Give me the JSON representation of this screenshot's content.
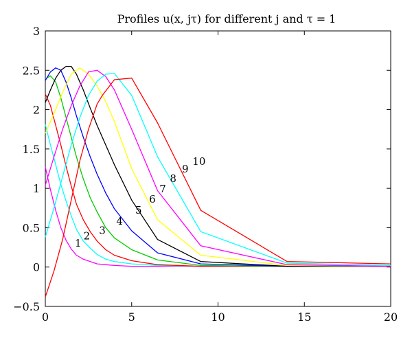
{
  "chart_data": {
    "type": "line",
    "title": "Profiles u(x, jτ) for different j and τ = 1",
    "xlim": [
      0,
      20
    ],
    "ylim": [
      -0.5,
      3
    ],
    "xticks": [
      "0",
      "5",
      "10",
      "15",
      "20"
    ],
    "yticks": [
      "−0.5",
      "0",
      "0.5",
      "1",
      "1.5",
      "2",
      "2.5",
      "3"
    ],
    "grid": false,
    "series": [
      {
        "label": "1",
        "color": "#ff00ff",
        "x": [
          0,
          0.3,
          0.6,
          0.9,
          1.2,
          1.5,
          1.8,
          2.2,
          2.6,
          3,
          3.5,
          4,
          5,
          6.5,
          9,
          14,
          20
        ],
        "y": [
          1.27,
          0.98,
          0.72,
          0.5,
          0.34,
          0.23,
          0.15,
          0.1,
          0.07,
          0.04,
          0.03,
          0.02,
          0.01,
          0.01,
          0.01,
          0.01,
          0.01
        ]
      },
      {
        "label": "2",
        "color": "#00ffff",
        "x": [
          0,
          0.3,
          0.6,
          0.9,
          1.2,
          1.5,
          1.8,
          2.2,
          2.6,
          3,
          3.5,
          4,
          5,
          6.5,
          9,
          14,
          20
        ],
        "y": [
          1.81,
          1.55,
          1.3,
          1.05,
          0.84,
          0.65,
          0.48,
          0.33,
          0.24,
          0.16,
          0.1,
          0.07,
          0.04,
          0.02,
          0.01,
          0.01,
          0.01
        ]
      },
      {
        "label": "3",
        "color": "#ff0000",
        "x": [
          0,
          0.3,
          0.6,
          0.9,
          1.2,
          1.5,
          1.8,
          2.2,
          2.6,
          3,
          3.5,
          4,
          5,
          6.5,
          9,
          14,
          20
        ],
        "y": [
          2.2,
          2.05,
          1.8,
          1.55,
          1.28,
          1.03,
          0.8,
          0.6,
          0.45,
          0.33,
          0.22,
          0.15,
          0.08,
          0.03,
          0.01,
          0.01,
          0.01
        ]
      },
      {
        "label": "4",
        "color": "#00cc00",
        "x": [
          0,
          0.3,
          0.6,
          0.9,
          1.2,
          1.5,
          1.8,
          2.2,
          2.6,
          3,
          3.5,
          4,
          5,
          6.5,
          9,
          14,
          20
        ],
        "y": [
          2.39,
          2.43,
          2.35,
          2.15,
          1.9,
          1.65,
          1.4,
          1.12,
          0.88,
          0.7,
          0.5,
          0.37,
          0.22,
          0.09,
          0.02,
          0.01,
          0.01
        ]
      },
      {
        "label": "5",
        "color": "#0000ff",
        "x": [
          0,
          0.3,
          0.6,
          0.9,
          1.2,
          1.5,
          1.8,
          2.2,
          2.6,
          3,
          3.5,
          4,
          5,
          6.5,
          9,
          14,
          20
        ],
        "y": [
          2.37,
          2.48,
          2.53,
          2.5,
          2.35,
          2.15,
          1.92,
          1.65,
          1.4,
          1.18,
          0.94,
          0.74,
          0.46,
          0.18,
          0.04,
          0.01,
          0.01
        ]
      },
      {
        "label": "6",
        "color": "#000000",
        "x": [
          0,
          0.3,
          0.6,
          0.9,
          1.2,
          1.5,
          1.8,
          2.2,
          2.6,
          3,
          3.5,
          4,
          5,
          6.5,
          9,
          14,
          20
        ],
        "y": [
          2.09,
          2.25,
          2.4,
          2.5,
          2.55,
          2.55,
          2.45,
          2.25,
          2.02,
          1.8,
          1.55,
          1.3,
          0.85,
          0.35,
          0.07,
          0.01,
          0.01
        ]
      },
      {
        "label": "7",
        "color": "#ffff00",
        "x": [
          0,
          0.5,
          1,
          1.5,
          2,
          2.5,
          3,
          3.5,
          4,
          5,
          6.5,
          9,
          14,
          20
        ],
        "y": [
          1.7,
          1.95,
          2.22,
          2.45,
          2.53,
          2.45,
          2.3,
          2.1,
          1.85,
          1.25,
          0.6,
          0.15,
          0.02,
          0.01
        ]
      },
      {
        "label": "8",
        "color": "#ff00ff",
        "x": [
          0,
          0.5,
          1,
          1.5,
          2,
          2.5,
          3,
          3.5,
          4,
          5,
          6.5,
          9,
          14,
          20
        ],
        "y": [
          1.04,
          1.4,
          1.75,
          2.05,
          2.3,
          2.48,
          2.5,
          2.42,
          2.25,
          1.75,
          0.97,
          0.27,
          0.03,
          0.01
        ]
      },
      {
        "label": "9",
        "color": "#00ffff",
        "x": [
          0,
          0.5,
          1,
          1.5,
          2,
          2.5,
          3,
          3.5,
          4,
          5,
          6.5,
          9,
          14,
          20
        ],
        "y": [
          0.38,
          0.75,
          1.15,
          1.55,
          1.9,
          2.18,
          2.36,
          2.45,
          2.46,
          2.18,
          1.4,
          0.45,
          0.05,
          0.02
        ]
      },
      {
        "label": "10",
        "color": "#ff0000",
        "x": [
          0,
          0.5,
          1,
          1.5,
          2,
          2.5,
          3,
          3.3,
          4,
          5,
          6.5,
          9,
          14,
          20
        ],
        "y": [
          -0.38,
          -0.05,
          0.35,
          0.85,
          1.35,
          1.75,
          2.07,
          2.18,
          2.38,
          2.4,
          1.83,
          0.72,
          0.07,
          0.04
        ]
      }
    ],
    "curve_labels": [
      {
        "text": "1",
        "x": 1.9,
        "y": 0.26
      },
      {
        "text": "2",
        "x": 2.4,
        "y": 0.35
      },
      {
        "text": "3",
        "x": 3.3,
        "y": 0.42
      },
      {
        "text": "4",
        "x": 4.3,
        "y": 0.54
      },
      {
        "text": "5",
        "x": 5.4,
        "y": 0.68
      },
      {
        "text": "6",
        "x": 6.2,
        "y": 0.82
      },
      {
        "text": "7",
        "x": 6.8,
        "y": 0.95
      },
      {
        "text": "8",
        "x": 7.4,
        "y": 1.08
      },
      {
        "text": "9",
        "x": 8.1,
        "y": 1.2
      },
      {
        "text": "10",
        "x": 8.9,
        "y": 1.3
      }
    ]
  }
}
